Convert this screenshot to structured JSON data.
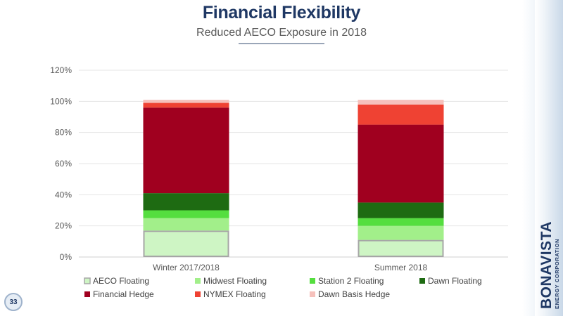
{
  "header": {
    "title": "Financial Flexibility",
    "subtitle": "Reduced AECO Exposure in 2018"
  },
  "brand": {
    "name": "BONAVISTA",
    "sub": "ENERGY CORPORATION"
  },
  "page_number": "33",
  "chart_data": {
    "type": "bar",
    "stacked": true,
    "categories": [
      "Winter 2017/2018",
      "Summer 2018"
    ],
    "ylim": [
      0,
      120
    ],
    "yticks": [
      0,
      20,
      40,
      60,
      80,
      100,
      120
    ],
    "ytick_labels": [
      "0%",
      "20%",
      "40%",
      "60%",
      "80%",
      "100%",
      "120%"
    ],
    "grid": true,
    "legend_position": "bottom",
    "series": [
      {
        "name": "AECO Floating",
        "color": "#cef5c4",
        "outline": "#a6a6a6",
        "values": [
          17,
          11
        ]
      },
      {
        "name": "Midwest Floating",
        "color": "#a2ef8a",
        "values": [
          8,
          9
        ]
      },
      {
        "name": "Station 2 Floating",
        "color": "#55de3f",
        "values": [
          5,
          5
        ]
      },
      {
        "name": "Dawn Floating",
        "color": "#1e6b12",
        "values": [
          11,
          10
        ]
      },
      {
        "name": "Financial Hedge",
        "color": "#a0001f",
        "values": [
          55,
          50
        ]
      },
      {
        "name": "NYMEX Floating",
        "color": "#ef4233",
        "values": [
          3,
          13
        ]
      },
      {
        "name": "Dawn Basis Hedge",
        "color": "#f6c1bc",
        "values": [
          2,
          3
        ]
      }
    ]
  }
}
